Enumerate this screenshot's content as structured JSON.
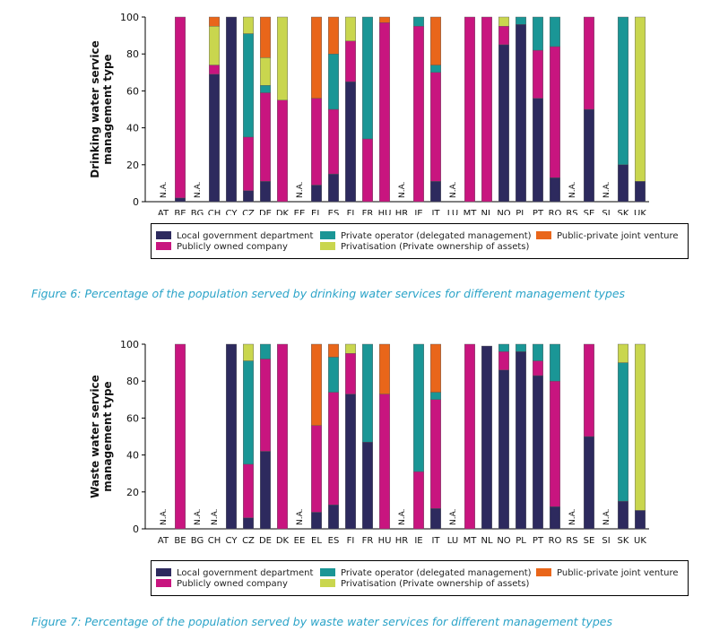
{
  "figures": [
    {
      "caption": "Figure 6: Percentage of the population served by drinking water services for different management types",
      "chart_data": {
        "type": "bar",
        "stacked": true,
        "ylabel": "Drinking water service management type",
        "ylim": [
          0,
          100
        ],
        "yticks": [
          0,
          20,
          40,
          60,
          80,
          100
        ],
        "categories": [
          "AT",
          "BE",
          "BG",
          "CH",
          "CY",
          "CZ",
          "DE",
          "DK",
          "EE",
          "EL",
          "ES",
          "FI",
          "FR",
          "HU",
          "HR",
          "IE",
          "IT",
          "LU",
          "MT",
          "NL",
          "NO",
          "PL",
          "PT",
          "RO",
          "RS",
          "SE",
          "SI",
          "SK",
          "UK"
        ],
        "na_label": "N.A.",
        "na_categories": [
          "AT",
          "BG",
          "EE",
          "HR",
          "LU",
          "RS",
          "SI"
        ],
        "series": [
          {
            "name": "Local government department",
            "color": "#2d2a5e",
            "values": [
              0,
              2,
              0,
              69,
              100,
              6,
              11,
              0,
              0,
              9,
              15,
              65,
              0,
              0,
              0,
              0,
              11,
              0,
              0,
              0,
              85,
              96,
              56,
              13,
              0,
              50,
              0,
              20,
              11
            ]
          },
          {
            "name": "Publicly owned company",
            "color": "#c8157f",
            "values": [
              0,
              98,
              0,
              5,
              0,
              29,
              48,
              55,
              0,
              47,
              35,
              22,
              34,
              97,
              0,
              95,
              59,
              0,
              100,
              100,
              10,
              0,
              26,
              71,
              0,
              50,
              0,
              0,
              0
            ]
          },
          {
            "name": "Private operator (delegated management)",
            "color": "#1a9696",
            "values": [
              0,
              0,
              0,
              0,
              0,
              56,
              4,
              0,
              0,
              0,
              30,
              0,
              66,
              0,
              0,
              5,
              4,
              0,
              0,
              0,
              0,
              4,
              18,
              16,
              0,
              0,
              0,
              80,
              0
            ]
          },
          {
            "name": "Privatisation (Private ownership of assets)",
            "color": "#c9d64e",
            "values": [
              0,
              0,
              0,
              21,
              0,
              9,
              15,
              45,
              0,
              0,
              0,
              13,
              0,
              0,
              0,
              0,
              0,
              0,
              0,
              0,
              5,
              0,
              0,
              0,
              0,
              0,
              0,
              0,
              89
            ]
          },
          {
            "name": "Public-private joint venture",
            "color": "#e9661a",
            "values": [
              0,
              0,
              0,
              5,
              0,
              0,
              22,
              0,
              0,
              44,
              20,
              0,
              0,
              3,
              0,
              0,
              26,
              0,
              0,
              0,
              0,
              0,
              0,
              0,
              0,
              0,
              0,
              0,
              0
            ]
          }
        ]
      }
    },
    {
      "caption": "Figure 7: Percentage of the population served by waste water services for different management types",
      "chart_data": {
        "type": "bar",
        "stacked": true,
        "ylabel": "Waste water service management type",
        "ylim": [
          0,
          100
        ],
        "yticks": [
          0,
          20,
          40,
          60,
          80,
          100
        ],
        "categories": [
          "AT",
          "BE",
          "BG",
          "CH",
          "CY",
          "CZ",
          "DE",
          "DK",
          "EE",
          "EL",
          "ES",
          "FI",
          "FR",
          "HU",
          "HR",
          "IE",
          "IT",
          "LU",
          "MT",
          "NL",
          "NO",
          "PL",
          "PT",
          "RO",
          "RS",
          "SE",
          "SI",
          "SK",
          "UK"
        ],
        "na_label": "N.A.",
        "na_categories": [
          "AT",
          "BG",
          "CH",
          "EE",
          "HR",
          "LU",
          "RS",
          "SI"
        ],
        "series": [
          {
            "name": "Local government department",
            "color": "#2d2a5e",
            "values": [
              0,
              0,
              0,
              0,
              100,
              6,
              42,
              0,
              0,
              9,
              13,
              73,
              47,
              0,
              0,
              0,
              11,
              0,
              0,
              99,
              86,
              96,
              83,
              12,
              0,
              50,
              0,
              15,
              10
            ]
          },
          {
            "name": "Publicly owned company",
            "color": "#c8157f",
            "values": [
              0,
              100,
              0,
              0,
              0,
              29,
              50,
              100,
              0,
              47,
              61,
              22,
              0,
              73,
              0,
              31,
              59,
              0,
              100,
              0,
              10,
              0,
              8,
              68,
              0,
              50,
              0,
              0,
              0
            ]
          },
          {
            "name": "Private operator (delegated management)",
            "color": "#1a9696",
            "values": [
              0,
              0,
              0,
              0,
              0,
              56,
              8,
              0,
              0,
              0,
              19,
              0,
              53,
              0,
              0,
              69,
              4,
              0,
              0,
              0,
              4,
              4,
              9,
              20,
              0,
              0,
              0,
              75,
              0
            ]
          },
          {
            "name": "Privatisation (Private ownership of assets)",
            "color": "#c9d64e",
            "values": [
              0,
              0,
              0,
              0,
              0,
              9,
              0,
              0,
              0,
              0,
              0,
              5,
              0,
              0,
              0,
              0,
              0,
              0,
              0,
              0,
              0,
              0,
              0,
              0,
              0,
              0,
              0,
              10,
              90
            ]
          },
          {
            "name": "Public-private joint venture",
            "color": "#e9661a",
            "values": [
              0,
              0,
              0,
              0,
              0,
              0,
              0,
              0,
              0,
              44,
              7,
              0,
              0,
              27,
              0,
              0,
              26,
              0,
              0,
              0,
              0,
              0,
              0,
              0,
              0,
              0,
              0,
              0,
              0
            ]
          }
        ]
      }
    }
  ]
}
